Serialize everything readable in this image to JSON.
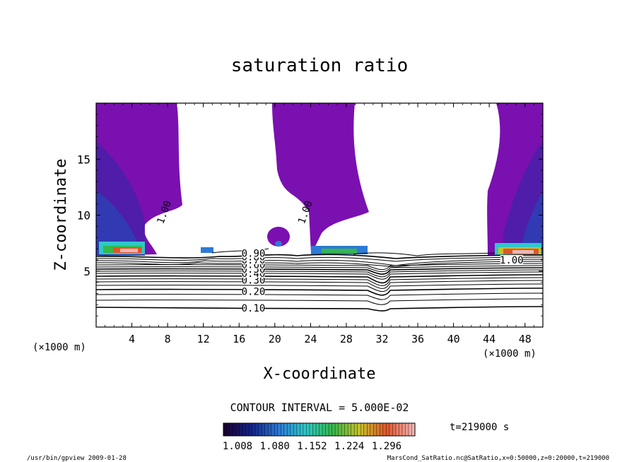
{
  "chart_data": {
    "type": "contour",
    "title": "saturation ratio",
    "xlabel": "X-coordinate",
    "ylabel": "Z-coordinate",
    "x_unit": "(×1000 m)",
    "y_unit": "(×1000 m)",
    "xlim": [
      0,
      50
    ],
    "ylim": [
      0,
      20
    ],
    "x_ticks": [
      4,
      8,
      12,
      16,
      20,
      24,
      28,
      32,
      36,
      40,
      44,
      48
    ],
    "y_ticks": [
      5,
      10,
      15
    ],
    "contour_interval_label": "CONTOUR INTERVAL = 5.000E-02",
    "contour_labels": [
      {
        "text": "0.10",
        "x": 17.6,
        "z": 1.5
      },
      {
        "text": "0.20",
        "x": 17.6,
        "z": 3.0
      },
      {
        "text": "0.30",
        "x": 17.6,
        "z": 4.0
      },
      {
        "text": "0.40",
        "x": 17.6,
        "z": 4.6
      },
      {
        "text": "0.50",
        "x": 17.6,
        "z": 5.0
      },
      {
        "text": "0.60",
        "x": 17.6,
        "z": 5.4
      },
      {
        "text": "0.70",
        "x": 17.6,
        "z": 5.8
      },
      {
        "text": "0.80",
        "x": 17.6,
        "z": 6.1
      },
      {
        "text": "0.90",
        "x": 17.6,
        "z": 6.4
      },
      {
        "text": "1.00",
        "x": 7.8,
        "z": 10.2
      },
      {
        "text": "1.00",
        "x": 23.6,
        "z": 10.2
      },
      {
        "text": "1.00",
        "x": 46.5,
        "z": 5.8
      }
    ],
    "colorbar": {
      "tick_labels": [
        "1.008",
        "1.080",
        "1.152",
        "1.224",
        "1.296"
      ],
      "colors": [
        "#1a0033",
        "#12238a",
        "#2d7ad6",
        "#2ec8c8",
        "#35b84a",
        "#c7c12a",
        "#e0552a",
        "#f2b4b4"
      ]
    },
    "time_label": "t=219000 s",
    "footer_left": "/usr/bin/gpview   2009-01-28",
    "footer_right": "MarsCond_SatRatio.nc@SatRatio,x=0:50000,z=0:20000,t=219000"
  }
}
